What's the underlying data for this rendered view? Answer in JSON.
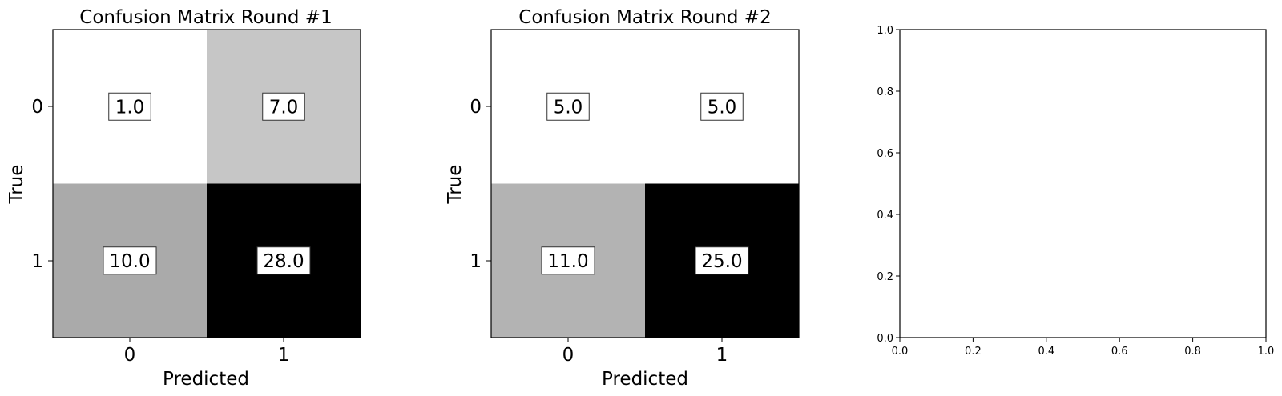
{
  "chart_data": [
    {
      "type": "heatmap",
      "title": "Confusion Matrix Round #1",
      "xlabel": "Predicted",
      "ylabel": "True",
      "x_ticks": [
        "0",
        "1"
      ],
      "y_ticks": [
        "0",
        "1"
      ],
      "values": [
        [
          1.0,
          7.0
        ],
        [
          10.0,
          28.0
        ]
      ],
      "cell_labels": [
        [
          "1.0",
          "7.0"
        ],
        [
          "10.0",
          "28.0"
        ]
      ],
      "colormap": "gray_r"
    },
    {
      "type": "heatmap",
      "title": "Confusion Matrix Round #2",
      "xlabel": "Predicted",
      "ylabel": "True",
      "x_ticks": [
        "0",
        "1"
      ],
      "y_ticks": [
        "0",
        "1"
      ],
      "values": [
        [
          5.0,
          5.0
        ],
        [
          11.0,
          25.0
        ]
      ],
      "cell_labels": [
        [
          "5.0",
          "5.0"
        ],
        [
          "11.0",
          "25.0"
        ]
      ],
      "colormap": "gray_r"
    },
    {
      "type": "scatter",
      "title": "",
      "xlabel": "",
      "ylabel": "",
      "xlim": [
        0.0,
        1.0
      ],
      "ylim": [
        0.0,
        1.0
      ],
      "x_ticks": [
        "0.0",
        "0.2",
        "0.4",
        "0.6",
        "0.8",
        "1.0"
      ],
      "y_ticks": [
        "0.0",
        "0.2",
        "0.4",
        "0.6",
        "0.8",
        "1.0"
      ],
      "series": []
    }
  ]
}
